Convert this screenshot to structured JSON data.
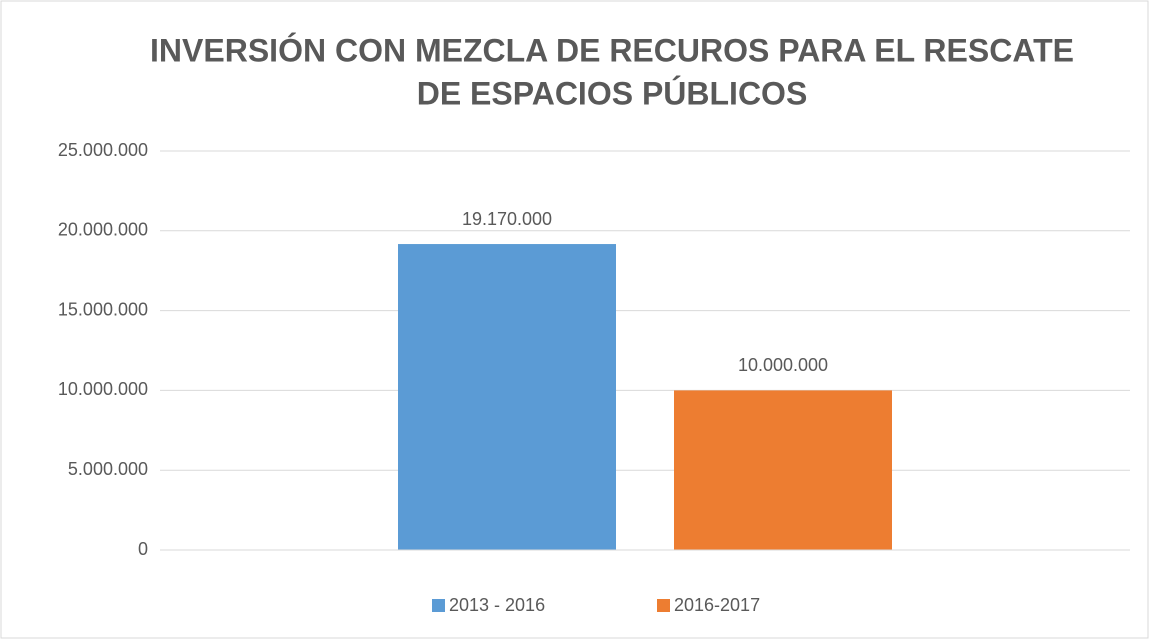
{
  "chart_data": {
    "type": "bar",
    "title": [
      "INVERSIÓN CON MEZCLA DE RECUROS PARA EL RESCATE",
      "DE ESPACIOS PÚBLICOS"
    ],
    "categories": [
      null
    ],
    "series": [
      {
        "name": "2013 - 2016",
        "color": "#5b9bd5",
        "values": [
          19170000
        ],
        "value_labels": [
          "19.170.000"
        ]
      },
      {
        "name": "2016-2017",
        "color": "#ed7d31",
        "values": [
          10000000
        ],
        "value_labels": [
          "10.000.000"
        ]
      }
    ],
    "ylim": [
      0,
      25000000
    ],
    "yticks": [
      0,
      {
        "value": 5000000,
        "label": "5.000.000"
      },
      {
        "value": 10000000,
        "label": "10.000.000"
      },
      {
        "value": 15000000,
        "label": "15.000.000"
      },
      {
        "value": 20000000,
        "label": "20.000.000"
      },
      {
        "value": 25000000,
        "label": "25.000.000"
      }
    ],
    "grid": true,
    "legend": "bottom"
  }
}
